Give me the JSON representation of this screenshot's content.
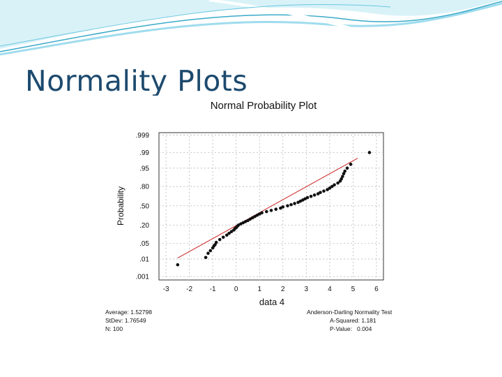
{
  "slide": {
    "title": "Normality Plots"
  },
  "colors": {
    "title": "#1d4a6e",
    "points": "#111111",
    "fit_line": "#cc2222",
    "grid": "#b8b8b8",
    "wave_light": "#bfe9f3",
    "wave_dark": "#3aaac9"
  },
  "chart_data": {
    "type": "scatter",
    "title": "Normal Probability Plot",
    "xlabel": "data 4",
    "ylabel": "Probability",
    "xlim": [
      -3.3,
      6.3
    ],
    "x_ticks": [
      -3,
      -2,
      -1,
      0,
      1,
      2,
      3,
      4,
      5,
      6
    ],
    "y_ticks": [
      ".999",
      ".99",
      ".95",
      ".80",
      ".50",
      ".20",
      ".05",
      ".01",
      ".001"
    ],
    "y_tick_values": [
      0.999,
      0.99,
      0.95,
      0.8,
      0.5,
      0.2,
      0.05,
      0.01,
      0.001
    ],
    "grid": true,
    "fit_line": {
      "mean": 1.52798,
      "stdev": 1.76549
    },
    "points": [
      [
        -2.5,
        0.005
      ],
      [
        -1.3,
        0.012
      ],
      [
        -1.2,
        0.019
      ],
      [
        -1.1,
        0.025
      ],
      [
        -1.0,
        0.033
      ],
      [
        -0.95,
        0.04
      ],
      [
        -0.9,
        0.045
      ],
      [
        -0.85,
        0.055
      ],
      [
        -0.7,
        0.07
      ],
      [
        -0.55,
        0.085
      ],
      [
        -0.4,
        0.1
      ],
      [
        -0.3,
        0.115
      ],
      [
        -0.2,
        0.13
      ],
      [
        -0.1,
        0.145
      ],
      [
        -0.05,
        0.16
      ],
      [
        0.0,
        0.17
      ],
      [
        0.05,
        0.185
      ],
      [
        0.1,
        0.2
      ],
      [
        0.2,
        0.215
      ],
      [
        0.3,
        0.23
      ],
      [
        0.4,
        0.245
      ],
      [
        0.5,
        0.26
      ],
      [
        0.6,
        0.28
      ],
      [
        0.7,
        0.3
      ],
      [
        0.8,
        0.32
      ],
      [
        0.9,
        0.34
      ],
      [
        1.0,
        0.36
      ],
      [
        1.1,
        0.38
      ],
      [
        1.3,
        0.4
      ],
      [
        1.5,
        0.42
      ],
      [
        1.7,
        0.44
      ],
      [
        1.9,
        0.46
      ],
      [
        2.0,
        0.48
      ],
      [
        2.2,
        0.5
      ],
      [
        2.35,
        0.52
      ],
      [
        2.5,
        0.54
      ],
      [
        2.65,
        0.56
      ],
      [
        2.75,
        0.58
      ],
      [
        2.85,
        0.6
      ],
      [
        2.95,
        0.62
      ],
      [
        3.05,
        0.64
      ],
      [
        3.2,
        0.66
      ],
      [
        3.35,
        0.68
      ],
      [
        3.5,
        0.7
      ],
      [
        3.6,
        0.72
      ],
      [
        3.75,
        0.74
      ],
      [
        3.9,
        0.76
      ],
      [
        4.0,
        0.78
      ],
      [
        4.1,
        0.8
      ],
      [
        4.2,
        0.82
      ],
      [
        4.35,
        0.84
      ],
      [
        4.45,
        0.86
      ],
      [
        4.5,
        0.88
      ],
      [
        4.55,
        0.9
      ],
      [
        4.6,
        0.92
      ],
      [
        4.65,
        0.935
      ],
      [
        4.75,
        0.95
      ],
      [
        4.9,
        0.965
      ],
      [
        5.7,
        0.99
      ]
    ]
  },
  "stats_left": {
    "average": "Average: 1.52798",
    "stdev": "StDev: 1.76549",
    "n": "N: 100"
  },
  "stats_right": {
    "test": "Anderson-Darling Normality Test",
    "a_squared": "A-Squared: 1.181",
    "p_value": "P-Value:   0.004"
  }
}
